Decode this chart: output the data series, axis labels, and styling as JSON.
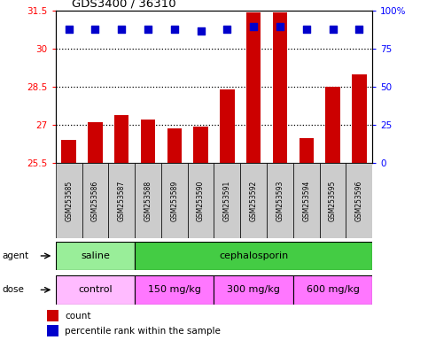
{
  "title": "GDS3400 / 36310",
  "samples": [
    "GSM253585",
    "GSM253586",
    "GSM253587",
    "GSM253588",
    "GSM253589",
    "GSM253590",
    "GSM253591",
    "GSM253592",
    "GSM253593",
    "GSM253594",
    "GSM253595",
    "GSM253596"
  ],
  "bar_tops": [
    26.4,
    27.1,
    27.4,
    27.2,
    26.85,
    26.95,
    28.4,
    31.4,
    31.4,
    26.5,
    28.5,
    29.0
  ],
  "bar_bottom": 25.5,
  "percentile_y_values": [
    30.75,
    30.75,
    30.75,
    30.75,
    30.75,
    30.7,
    30.75,
    30.85,
    30.85,
    30.75,
    30.75,
    30.75
  ],
  "bar_color": "#cc0000",
  "dot_color": "#0000cc",
  "ylim_left": [
    25.5,
    31.5
  ],
  "ylim_right": [
    0,
    100
  ],
  "yticks_left": [
    25.5,
    27.0,
    28.5,
    30.0,
    31.5
  ],
  "yticks_right": [
    0,
    25,
    50,
    75,
    100
  ],
  "ytick_labels_left": [
    "25.5",
    "27",
    "28.5",
    "30",
    "31.5"
  ],
  "ytick_labels_right": [
    "0",
    "25",
    "50",
    "75",
    "100%"
  ],
  "hlines": [
    27.0,
    28.5,
    30.0
  ],
  "agent_groups": [
    {
      "label": "saline",
      "start": 0,
      "end": 3,
      "color": "#99ee99"
    },
    {
      "label": "cephalosporin",
      "start": 3,
      "end": 12,
      "color": "#44cc44"
    }
  ],
  "dose_groups": [
    {
      "label": "control",
      "start": 0,
      "end": 3,
      "color": "#ffbbff"
    },
    {
      "label": "150 mg/kg",
      "start": 3,
      "end": 6,
      "color": "#ff77ff"
    },
    {
      "label": "300 mg/kg",
      "start": 6,
      "end": 9,
      "color": "#ff77ff"
    },
    {
      "label": "600 mg/kg",
      "start": 9,
      "end": 12,
      "color": "#ff77ff"
    }
  ],
  "legend_count_color": "#cc0000",
  "legend_pct_color": "#0000cc",
  "background_color": "#ffffff",
  "plot_bg_color": "#ffffff",
  "bar_width": 0.55,
  "dot_size": 28,
  "sample_box_color": "#cccccc",
  "n_samples": 12
}
